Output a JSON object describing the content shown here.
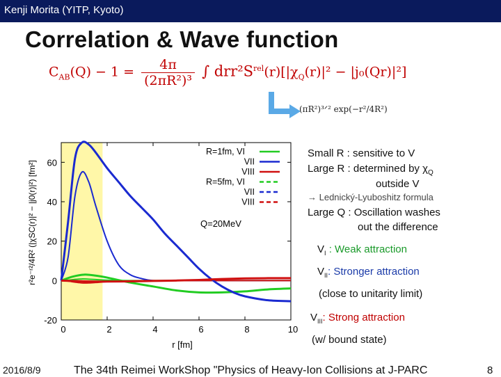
{
  "header": {
    "author": "Kenji Morita (YITP, Kyoto)"
  },
  "title": "Correlation & Wave function",
  "formula": {
    "lhs": "C",
    "lhs_sub": "AB",
    "lhs_arg": "(Q) − 1 = ",
    "frac_num": "4π",
    "frac_den": "(2πR²)³",
    "integral": "∫ drr²S",
    "rel": "rel",
    "rest": "(r)[|χ",
    "q": "Q",
    "rest2": "(r)|² − |j₀(Qr)|²]"
  },
  "source_function": "(πR²)³ᐟ² exp(−r²/4R²)",
  "notes": {
    "small_r": "Small R : sensitive to V",
    "large_r": "Large R : determined by χ",
    "large_r_sub": "Q",
    "outside": "outside V",
    "ll_formula": "→ Lednický-Lyuboshitz formula",
    "large_q1": "Large Q : Oscillation washes",
    "large_q2": "out the difference",
    "v1_prefix": "V",
    "v1_sub": "I",
    "v1_desc": " : Weak attraction",
    "v2_prefix": "V",
    "v2_sub": "II",
    "v2_desc": ": Stronger attraction",
    "v2_note": "(close to unitarity limit)",
    "v3_prefix": "V",
    "v3_sub": "III",
    "v3_desc": ": Strong attraction",
    "v3_note": "(w/ bound state)"
  },
  "footer": {
    "date": "2016/8/9",
    "conference": "The 34th Reimei WorkShop \"Physics of Heavy-Ion Collisions at J-PARC",
    "page": "8"
  },
  "chart_data": {
    "type": "line",
    "xlabel": "r [fm]",
    "ylabel": "r²e⁻ʳ²/4R² (|χSC(r)|² − |j0(r)|²) [fm²]",
    "xlim": [
      0,
      10
    ],
    "ylim": [
      -20,
      70
    ],
    "x_ticks": [
      "0",
      "2",
      "4",
      "6",
      "8",
      "10"
    ],
    "y_ticks": [
      "-20",
      "0",
      "20",
      "40",
      "60"
    ],
    "annotation": "Q=20MeV",
    "highlight_region": [
      0,
      1.8
    ],
    "colors": {
      "V_I": "#22cc22",
      "V_II": "#1a2ad0",
      "V_III": "#d01010",
      "highlight": "#fff7a8"
    },
    "legend": {
      "placement": "top-right",
      "entries": [
        "R=1fm, VI",
        "VII",
        "VIII",
        "R=5fm, VI",
        "VII",
        "VIII"
      ]
    },
    "series": [
      {
        "name": "R=1fm, VI",
        "style": "solid",
        "color": "#22cc22",
        "x": [
          0,
          0.3,
          0.6,
          0.9,
          1.2,
          1.5,
          2,
          3,
          4,
          6,
          8,
          10
        ],
        "values": [
          0,
          0.2,
          0.6,
          0.8,
          0.7,
          0.5,
          0.2,
          0,
          0,
          0,
          0,
          0
        ]
      },
      {
        "name": "VII",
        "style": "solid",
        "color": "#1a2ad0",
        "x": [
          0,
          0.3,
          0.6,
          0.9,
          1.2,
          1.5,
          2,
          2.5,
          3,
          3.5,
          4,
          5,
          10
        ],
        "values": [
          0,
          12,
          43,
          55,
          50,
          38,
          20,
          8,
          3,
          1,
          0,
          0,
          0
        ]
      },
      {
        "name": "VIII",
        "style": "solid",
        "color": "#d01010",
        "x": [
          0,
          0.3,
          0.6,
          0.9,
          1.2,
          1.5,
          2,
          3,
          4,
          6,
          8,
          10
        ],
        "values": [
          0,
          -0.3,
          -0.8,
          -1.2,
          -1.2,
          -1,
          -0.6,
          -0.2,
          0,
          0,
          0,
          0
        ]
      },
      {
        "name": "R=5fm, VI",
        "style": "dashed",
        "color": "#22cc22",
        "x": [
          0,
          0.5,
          1,
          1.5,
          2,
          3,
          4,
          5,
          6,
          7,
          8,
          9,
          10
        ],
        "values": [
          0,
          2,
          3,
          2.5,
          1.5,
          -1,
          -3,
          -5,
          -6,
          -6,
          -5.5,
          -4.5,
          -4
        ]
      },
      {
        "name": "VII",
        "style": "dashed",
        "color": "#1a2ad0",
        "x": [
          0,
          0.3,
          0.6,
          0.9,
          1.2,
          1.5,
          2,
          2.5,
          3,
          3.5,
          4,
          4.5,
          5,
          5.5,
          6,
          6.5,
          7,
          7.5,
          8,
          9,
          10
        ],
        "values": [
          0,
          30,
          62,
          70,
          69,
          65,
          57,
          50,
          43,
          37,
          31,
          24,
          18,
          12,
          6,
          1,
          -3,
          -6,
          -8,
          -10,
          -10.5
        ]
      },
      {
        "name": "VIII",
        "style": "dashed",
        "color": "#d01010",
        "x": [
          0,
          0.5,
          1,
          1.5,
          2,
          3,
          4,
          5,
          6,
          7,
          8,
          9,
          10
        ],
        "values": [
          0,
          -0.2,
          -0.4,
          -0.5,
          -0.5,
          -0.4,
          -0.2,
          0,
          0.3,
          0.8,
          1.1,
          1.2,
          1.2
        ]
      }
    ]
  }
}
